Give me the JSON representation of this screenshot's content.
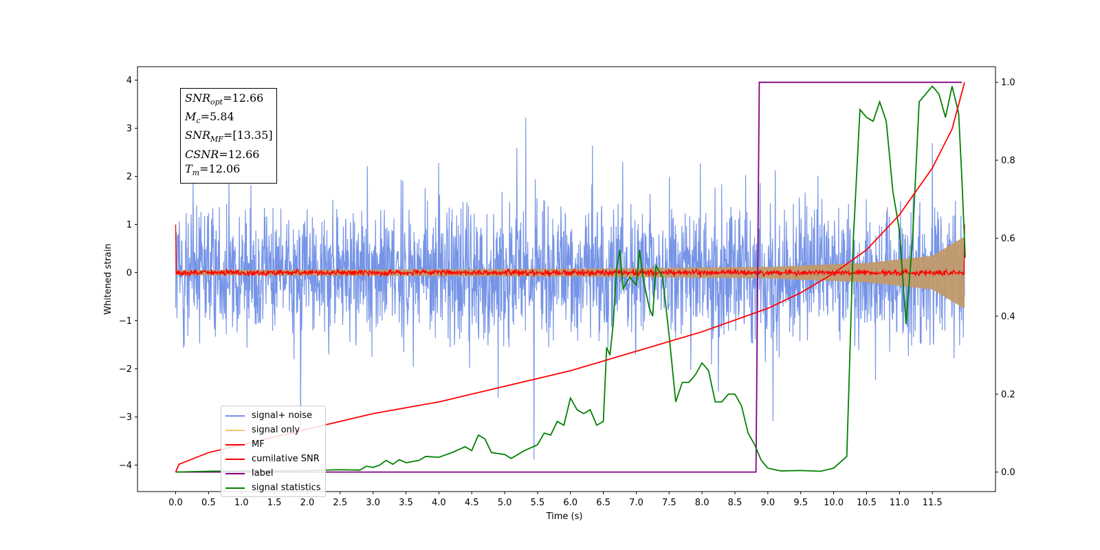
{
  "chart_data": {
    "type": "line",
    "xlabel": "Time (s)",
    "ylabel": "Whitened strain",
    "xlim": [
      -0.58,
      12.46
    ],
    "ylim": [
      -4.55,
      4.28
    ],
    "y2lim": [
      -0.05,
      1.04
    ],
    "x_ticks": [
      "0.0",
      "0.5",
      "1.0",
      "1.5",
      "2.0",
      "2.5",
      "3.0",
      "3.5",
      "4.0",
      "4.5",
      "5.0",
      "5.5",
      "6.0",
      "6.5",
      "7.0",
      "7.5",
      "8.0",
      "8.5",
      "9.0",
      "9.5",
      "10.0",
      "10.5",
      "11.0",
      "11.5"
    ],
    "y_ticks": [
      "4",
      "3",
      "2",
      "1",
      "0",
      "−1",
      "−2",
      "−3",
      "−4"
    ],
    "y2_ticks": [
      "1.0",
      "0.8",
      "0.6",
      "0.4",
      "0.2",
      "0.0"
    ],
    "annotation": {
      "snr_opt": "12.66",
      "mc": "5.84",
      "snr_mf": "[13.35]",
      "csnr": "12.66",
      "tm": "12.06"
    },
    "legend": {
      "position": "lower-left",
      "entries": [
        "signal+ noise",
        "signal only",
        "MF",
        "cumilative SNR",
        "label",
        "signal statistics"
      ]
    },
    "series": [
      {
        "name": "signal+ noise",
        "color": "#6f8ee6",
        "axis": "left",
        "description": "whitened strain noise, roughly ±3.5"
      },
      {
        "name": "signal only",
        "color": "#f5c36b",
        "axis": "left",
        "envelope_amplitude": [
          [
            0.0,
            0.05
          ],
          [
            6.0,
            0.08
          ],
          [
            9.0,
            0.12
          ],
          [
            10.5,
            0.2
          ],
          [
            11.5,
            0.35
          ],
          [
            11.99,
            0.75
          ]
        ]
      },
      {
        "name": "MF",
        "color": "#ff0000",
        "axis": "left",
        "edge_value": 1.0,
        "noise_amplitude": 0.1
      },
      {
        "name": "cumilative SNR",
        "color": "#ff0000",
        "axis": "right",
        "points": [
          [
            0.0,
            0.0
          ],
          [
            0.05,
            0.02
          ],
          [
            0.5,
            0.05
          ],
          [
            1.0,
            0.07
          ],
          [
            2.0,
            0.11
          ],
          [
            3.0,
            0.15
          ],
          [
            4.0,
            0.18
          ],
          [
            5.0,
            0.22
          ],
          [
            6.0,
            0.26
          ],
          [
            7.0,
            0.31
          ],
          [
            8.0,
            0.36
          ],
          [
            8.5,
            0.39
          ],
          [
            9.0,
            0.42
          ],
          [
            9.5,
            0.46
          ],
          [
            10.0,
            0.51
          ],
          [
            10.5,
            0.57
          ],
          [
            11.0,
            0.66
          ],
          [
            11.5,
            0.78
          ],
          [
            11.8,
            0.88
          ],
          [
            11.99,
            1.0
          ]
        ]
      },
      {
        "name": "label",
        "color": "#800080",
        "axis": "right",
        "points": [
          [
            0.0,
            0.0
          ],
          [
            8.82,
            0.0
          ],
          [
            8.87,
            1.0
          ],
          [
            11.95,
            1.0
          ]
        ]
      },
      {
        "name": "signal statistics",
        "color": "#008000",
        "axis": "right",
        "points": [
          [
            0.0,
            0.0
          ],
          [
            0.5,
            0.002
          ],
          [
            1.0,
            0.003
          ],
          [
            1.5,
            0.003
          ],
          [
            2.0,
            0.004
          ],
          [
            2.5,
            0.006
          ],
          [
            2.8,
            0.005
          ],
          [
            2.9,
            0.015
          ],
          [
            3.0,
            0.012
          ],
          [
            3.1,
            0.018
          ],
          [
            3.2,
            0.03
          ],
          [
            3.3,
            0.02
          ],
          [
            3.4,
            0.032
          ],
          [
            3.5,
            0.024
          ],
          [
            3.7,
            0.03
          ],
          [
            3.8,
            0.04
          ],
          [
            4.0,
            0.038
          ],
          [
            4.2,
            0.05
          ],
          [
            4.4,
            0.065
          ],
          [
            4.5,
            0.055
          ],
          [
            4.6,
            0.095
          ],
          [
            4.7,
            0.085
          ],
          [
            4.8,
            0.05
          ],
          [
            5.0,
            0.045
          ],
          [
            5.1,
            0.035
          ],
          [
            5.3,
            0.055
          ],
          [
            5.5,
            0.07
          ],
          [
            5.6,
            0.1
          ],
          [
            5.7,
            0.095
          ],
          [
            5.8,
            0.13
          ],
          [
            5.9,
            0.12
          ],
          [
            6.0,
            0.19
          ],
          [
            6.1,
            0.16
          ],
          [
            6.2,
            0.15
          ],
          [
            6.3,
            0.16
          ],
          [
            6.4,
            0.12
          ],
          [
            6.5,
            0.13
          ],
          [
            6.55,
            0.32
          ],
          [
            6.6,
            0.3
          ],
          [
            6.65,
            0.38
          ],
          [
            6.7,
            0.52
          ],
          [
            6.75,
            0.57
          ],
          [
            6.8,
            0.47
          ],
          [
            6.9,
            0.5
          ],
          [
            7.0,
            0.48
          ],
          [
            7.05,
            0.57
          ],
          [
            7.1,
            0.5
          ],
          [
            7.2,
            0.42
          ],
          [
            7.25,
            0.4
          ],
          [
            7.3,
            0.53
          ],
          [
            7.4,
            0.5
          ],
          [
            7.5,
            0.35
          ],
          [
            7.6,
            0.18
          ],
          [
            7.7,
            0.23
          ],
          [
            7.8,
            0.23
          ],
          [
            7.9,
            0.25
          ],
          [
            8.0,
            0.28
          ],
          [
            8.1,
            0.26
          ],
          [
            8.2,
            0.18
          ],
          [
            8.3,
            0.18
          ],
          [
            8.4,
            0.2
          ],
          [
            8.5,
            0.2
          ],
          [
            8.6,
            0.17
          ],
          [
            8.7,
            0.1
          ],
          [
            8.8,
            0.07
          ],
          [
            8.9,
            0.03
          ],
          [
            9.0,
            0.01
          ],
          [
            9.2,
            0.003
          ],
          [
            9.5,
            0.004
          ],
          [
            9.8,
            0.002
          ],
          [
            10.0,
            0.01
          ],
          [
            10.2,
            0.04
          ],
          [
            10.3,
            0.6
          ],
          [
            10.4,
            0.93
          ],
          [
            10.5,
            0.91
          ],
          [
            10.6,
            0.9
          ],
          [
            10.7,
            0.95
          ],
          [
            10.8,
            0.9
          ],
          [
            10.9,
            0.72
          ],
          [
            11.0,
            0.62
          ],
          [
            11.1,
            0.38
          ],
          [
            11.2,
            0.6
          ],
          [
            11.3,
            0.95
          ],
          [
            11.4,
            0.97
          ],
          [
            11.5,
            0.99
          ],
          [
            11.6,
            0.97
          ],
          [
            11.7,
            0.91
          ],
          [
            11.8,
            0.99
          ],
          [
            11.9,
            0.92
          ],
          [
            11.95,
            0.75
          ],
          [
            12.0,
            0.55
          ]
        ]
      }
    ]
  }
}
